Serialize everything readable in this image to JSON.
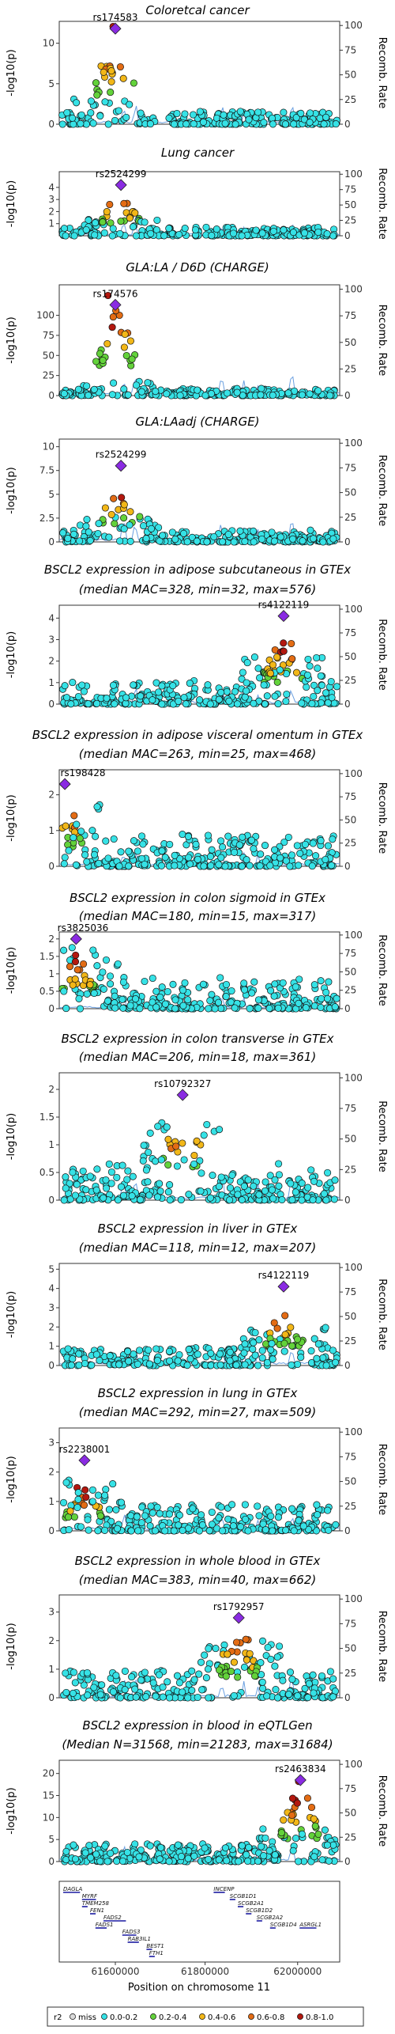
{
  "chart_data": [
    {
      "type": "scatter",
      "title": [
        "Coloretcal cancer"
      ],
      "ylabel": "-log10(p)",
      "y2label": "Recomb. Rate",
      "yticks": [
        0,
        5,
        10
      ],
      "ylim": [
        0,
        12.7
      ],
      "lead_snp": "rs174583",
      "lead_x": 0.2,
      "lead_y": 11.8,
      "hot": "left",
      "seed": 3,
      "peak": 11.5,
      "base": 1.6,
      "npts": 240
    },
    {
      "type": "scatter",
      "title": [
        "Lung cancer"
      ],
      "ylabel": "-log10(p)",
      "y2label": "Recomb. Rate",
      "yticks": [
        1,
        2,
        3,
        4
      ],
      "ylim": [
        0,
        5.3
      ],
      "lead_snp": "rs2524299",
      "lead_x": 0.22,
      "lead_y": 4.2,
      "hot": "left",
      "seed": 5,
      "peak": 3.2,
      "base": 0.7,
      "npts": 260
    },
    {
      "type": "scatter",
      "title": [
        "GLA:LA / D6D (CHARGE)"
      ],
      "ylabel": "-log10(p)",
      "y2label": "Recomb. Rate",
      "yticks": [
        0,
        25,
        50,
        75,
        100
      ],
      "ylim": [
        0,
        138
      ],
      "lead_snp": "rs174576",
      "lead_x": 0.2,
      "lead_y": 113,
      "hot": "left",
      "seed": 7,
      "peak": 120,
      "base": 9,
      "npts": 250
    },
    {
      "type": "scatter",
      "title": [
        "GLA:LAadj (CHARGE)"
      ],
      "ylabel": "-log10(p)",
      "y2label": "Recomb. Rate",
      "yticks": [
        0,
        2.5,
        5,
        7.5,
        10
      ],
      "ylim": [
        0,
        10.8
      ],
      "lead_snp": "rs2524299",
      "lead_x": 0.22,
      "lead_y": 8.0,
      "hot": "left",
      "seed": 11,
      "peak": 6,
      "base": 1.3,
      "npts": 250
    },
    {
      "type": "scatter",
      "title": [
        "BSCL2 expression in adipose subcutaneous in GTEx",
        "(median MAC=328, min=32, max=576)"
      ],
      "ylabel": "-log10(p)",
      "y2label": "Recomb. Rate",
      "yticks": [
        0,
        1,
        2,
        3,
        4
      ],
      "ylim": [
        0,
        4.6
      ],
      "lead_snp": "rs4122119",
      "lead_x": 0.8,
      "lead_y": 4.1,
      "hot": "right",
      "seed": 13,
      "peak": 3.2,
      "base": 1.1,
      "npts": 280
    },
    {
      "type": "scatter",
      "title": [
        "BSCL2 expression in adipose visceral omentum in GTEx",
        "(median MAC=263, min=25, max=468)"
      ],
      "ylabel": "-log10(p)",
      "y2label": "Recomb. Rate",
      "yticks": [
        0,
        1,
        2
      ],
      "ylim": [
        0,
        2.7
      ],
      "lead_snp": "rs198428",
      "lead_x": 0.02,
      "lead_y": 2.3,
      "hot": "left",
      "seed": 17,
      "peak": 1.7,
      "base": 0.9,
      "npts": 280
    },
    {
      "type": "scatter",
      "title": [
        "BSCL2 expression in colon sigmoid in GTEx",
        "(median MAC=180, min=15, max=317)"
      ],
      "ylabel": "-log10(p)",
      "y2label": "Recomb. Rate",
      "yticks": [
        0,
        0.5,
        1,
        1.5,
        2
      ],
      "ylim": [
        0,
        2.2
      ],
      "lead_snp": "rs3825036",
      "lead_x": 0.06,
      "lead_y": 2.0,
      "hot": "left",
      "seed": 19,
      "peak": 1.5,
      "base": 0.9,
      "npts": 280
    },
    {
      "type": "scatter",
      "title": [
        "BSCL2 expression in colon transverse in GTEx",
        "(median MAC=206, min=18, max=361)"
      ],
      "ylabel": "-log10(p)",
      "y2label": "Recomb. Rate",
      "yticks": [
        0,
        0.5,
        1,
        1.5,
        2
      ],
      "ylim": [
        0,
        2.3
      ],
      "lead_snp": "rs10792327",
      "lead_x": 0.44,
      "lead_y": 1.9,
      "hot": "mid",
      "seed": 23,
      "peak": 1.6,
      "base": 0.7,
      "npts": 280
    },
    {
      "type": "scatter",
      "title": [
        "BSCL2 expression in liver in GTEx",
        "(median MAC=118, min=12, max=207)"
      ],
      "ylabel": "-log10(p)",
      "y2label": "Recomb. Rate",
      "yticks": [
        0,
        1,
        2,
        3,
        4,
        5
      ],
      "ylim": [
        0,
        5.3
      ],
      "lead_snp": "rs4122119",
      "lead_x": 0.8,
      "lead_y": 4.1,
      "hot": "right",
      "seed": 29,
      "peak": 3.2,
      "base": 1.0,
      "npts": 260
    },
    {
      "type": "scatter",
      "title": [
        "BSCL2 expression in lung in GTEx",
        "(median MAC=292, min=27, max=509)"
      ],
      "ylabel": "-log10(p)",
      "y2label": "Recomb. Rate",
      "yticks": [
        0,
        1,
        2,
        3
      ],
      "ylim": [
        0,
        3.5
      ],
      "lead_snp": "rs2238001",
      "lead_x": 0.09,
      "lead_y": 2.4,
      "hot": "left",
      "seed": 31,
      "peak": 1.4,
      "base": 0.9,
      "npts": 280
    },
    {
      "type": "scatter",
      "title": [
        "BSCL2 expression in whole blood in GTEx",
        "(median MAC=383, min=40, max=662)"
      ],
      "ylabel": "-log10(p)",
      "y2label": "Recomb. Rate",
      "yticks": [
        0,
        1,
        2,
        3
      ],
      "ylim": [
        0,
        3.6
      ],
      "lead_snp": "rs1792957",
      "lead_x": 0.64,
      "lead_y": 2.8,
      "hot": "right",
      "seed": 37,
      "peak": 2.3,
      "base": 1.0,
      "npts": 280
    },
    {
      "type": "scatter",
      "title": [
        "BSCL2 expression in blood in eQTLGen",
        "(Median N=31568, min=21283, max=31684)"
      ],
      "ylabel": "-log10(p)",
      "y2label": "Recomb. Rate",
      "yticks": [
        0,
        5,
        10,
        15,
        20
      ],
      "ylim": [
        0,
        23
      ],
      "lead_snp": "rs2463834",
      "lead_x": 0.86,
      "lead_y": 18.5,
      "hot": "right",
      "seed": 41,
      "peak": 17,
      "base": 4,
      "npts": 300
    }
  ],
  "recomb_ticks": [
    0,
    25,
    50,
    75,
    100
  ],
  "genes": {
    "xlabel": "Position on chromosome 11",
    "xticks": [
      {
        "label": "61600000",
        "f": 0.2
      },
      {
        "label": "61800000",
        "f": 0.52
      },
      {
        "label": "62000000",
        "f": 0.85
      }
    ],
    "items": [
      {
        "name": "DAGLA",
        "f": 0.0,
        "row": 0,
        "len": 0.06
      },
      {
        "name": "MYRF",
        "f": 0.07,
        "row": 1,
        "len": 0.05
      },
      {
        "name": "TMEM258",
        "f": 0.07,
        "row": 2,
        "len": 0.02
      },
      {
        "name": "FEN1",
        "f": 0.1,
        "row": 3,
        "len": 0.02
      },
      {
        "name": "FADS2",
        "f": 0.15,
        "row": 4,
        "len": 0.08
      },
      {
        "name": "FADS1",
        "f": 0.12,
        "row": 5,
        "len": 0.04
      },
      {
        "name": "FADS3",
        "f": 0.22,
        "row": 6,
        "len": 0.05
      },
      {
        "name": "RAB3IL1",
        "f": 0.24,
        "row": 7,
        "len": 0.04
      },
      {
        "name": "BEST1",
        "f": 0.31,
        "row": 8,
        "len": 0.02
      },
      {
        "name": "FTH1",
        "f": 0.32,
        "row": 9,
        "len": 0.02
      },
      {
        "name": "INCENP",
        "f": 0.56,
        "row": 0,
        "len": 0.04
      },
      {
        "name": "SCGB1D1",
        "f": 0.62,
        "row": 1,
        "len": 0.02
      },
      {
        "name": "SCGB2A1",
        "f": 0.65,
        "row": 2,
        "len": 0.02
      },
      {
        "name": "SCGB1D2",
        "f": 0.68,
        "row": 3,
        "len": 0.02
      },
      {
        "name": "SCGB2A2",
        "f": 0.72,
        "row": 4,
        "len": 0.02
      },
      {
        "name": "SCGB1D4",
        "f": 0.77,
        "row": 5,
        "len": 0.02
      },
      {
        "name": "ASRGL1",
        "f": 0.88,
        "row": 5,
        "len": 0.06
      }
    ]
  },
  "legend": {
    "title": "r2",
    "items": [
      {
        "label": "miss",
        "color": "#d9d9d9"
      },
      {
        "label": "0.0-0.2",
        "color": "#36e2e6"
      },
      {
        "label": "0.2-0.4",
        "color": "#63d23b"
      },
      {
        "label": "0.4-0.6",
        "color": "#f2b718"
      },
      {
        "label": "0.6-0.8",
        "color": "#e36c14"
      },
      {
        "label": "0.8-1.0",
        "color": "#b3180f"
      }
    ]
  },
  "colors": {
    "lead": "#8a2be2",
    "recomb": "#6a9fe0"
  }
}
